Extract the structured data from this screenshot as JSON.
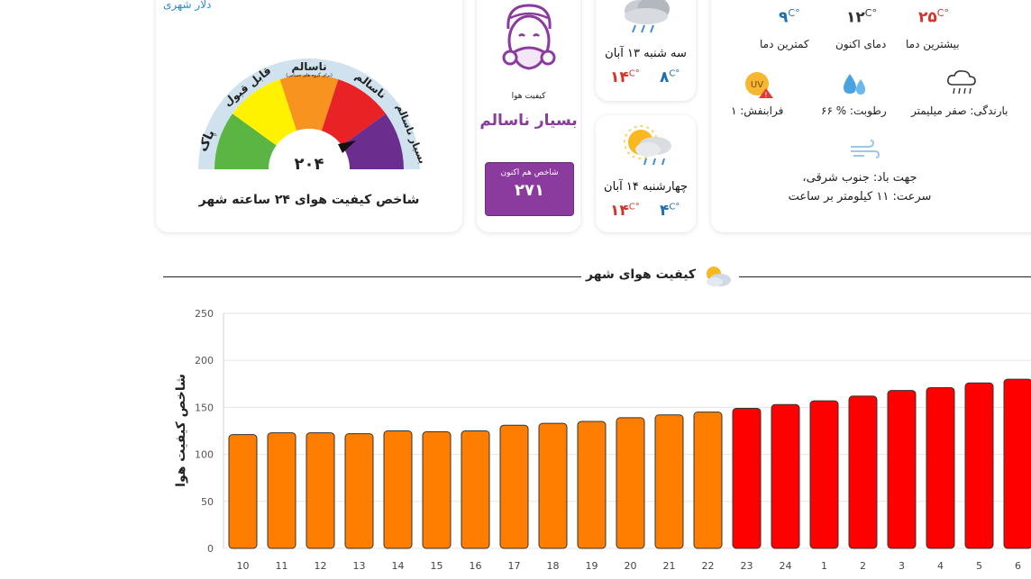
{
  "gauge": {
    "top_link": "دلار شهری",
    "labels": {
      "clean": "پاک",
      "acceptable": "قابل قبول",
      "unhealthy_sensitive": "ناسالم",
      "unhealthy_sensitive_sub": "(برای گروه های حساس)",
      "unhealthy": "ناسالم",
      "very_unhealthy": "بسیار ناسالم"
    },
    "value": "۲۰۴",
    "value_num": 204,
    "caption": "شاخص کیفیت هوای ۲۴ ساعته شهر"
  },
  "air_quality": {
    "label": "کیفیت هوا",
    "status": "بسیار ناسالم",
    "index_label": "شاخص هم اکنون",
    "index_value": "۲۷۱",
    "status_color": "#8b3a9e"
  },
  "forecast": [
    {
      "day": "سه شنبه ۱۳ آبان",
      "max": "۱۴",
      "min": "۸",
      "unit": "C°",
      "icon": "rain-cloud-icon"
    },
    {
      "day": "چهارشنبه ۱۴ آبان",
      "max": "۱۴",
      "min": "۴",
      "unit": "C°",
      "icon": "sun-rain-icon"
    }
  ],
  "weather": {
    "max_temp": "۲۵",
    "cur_temp": "۱۲",
    "min_temp": "۹",
    "unit": "C°",
    "max_label": "بیشترین دما",
    "cur_label": "دمای اکنون",
    "min_label": "کمترین دما",
    "rain": "بارندگی: صفر میلیمتر",
    "humidity": "رطوبت: % ۶۶",
    "uv": "فرابنفش: ۱",
    "uv_badge": "UV",
    "wind_dir": "جهت باد: جنوب شرقی،",
    "wind_speed": "سرعت: ۱۱ کیلومتر بر ساعت"
  },
  "section": {
    "title": "کیفیت هوای شهر"
  },
  "chart_data": {
    "type": "bar",
    "ylabel": "شاخص کیفیت هوا",
    "xlabel": "",
    "ylim": [
      0,
      250
    ],
    "yticks": [
      0,
      50,
      100,
      150,
      200,
      250
    ],
    "categories": [
      "10",
      "11",
      "12",
      "13",
      "14",
      "15",
      "16",
      "17",
      "18",
      "19",
      "20",
      "21",
      "22",
      "23",
      "24",
      "1",
      "2",
      "3",
      "4",
      "5",
      "6"
    ],
    "values": [
      121,
      123,
      123,
      122,
      125,
      124,
      125,
      131,
      133,
      135,
      139,
      142,
      145,
      149,
      153,
      157,
      162,
      168,
      171,
      176,
      180
    ],
    "colors": [
      "#ff7e00",
      "#ff7e00",
      "#ff7e00",
      "#ff7e00",
      "#ff7e00",
      "#ff7e00",
      "#ff7e00",
      "#ff7e00",
      "#ff7e00",
      "#ff7e00",
      "#ff7e00",
      "#ff7e00",
      "#ff7e00",
      "#ff0000",
      "#ff0000",
      "#ff0000",
      "#ff0000",
      "#ff0000",
      "#ff0000",
      "#ff0000",
      "#ff0000"
    ],
    "grid": true
  }
}
